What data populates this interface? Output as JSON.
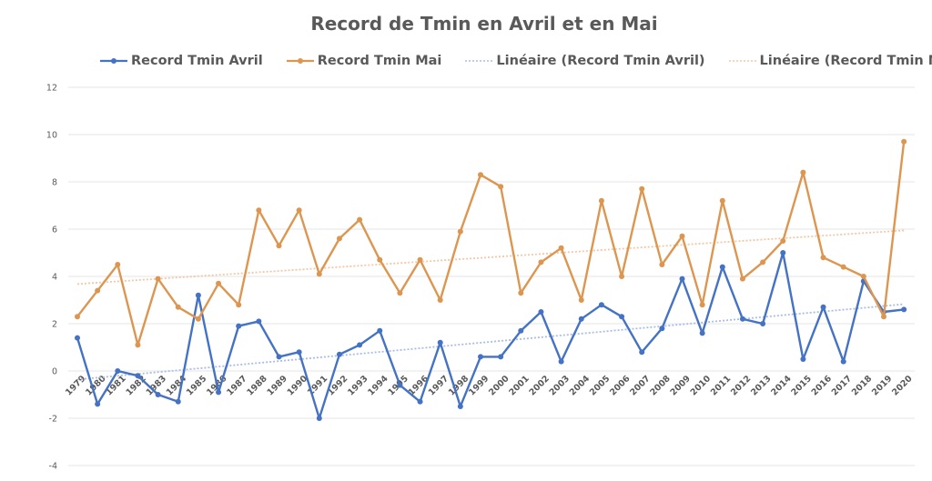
{
  "chart_data": {
    "type": "line",
    "title": "Record de Tmin en Avril et en Mai",
    "xlabel": "",
    "ylabel": "",
    "ylim": [
      -4,
      12
    ],
    "yticks": [
      "-4",
      "-2",
      "0",
      "2",
      "4",
      "6",
      "8",
      "10",
      "12"
    ],
    "grid": true,
    "legend_position": "top",
    "categories": [
      "1979",
      "1980",
      "1981",
      "1982",
      "1983",
      "1984",
      "1985",
      "1986",
      "1987",
      "1988",
      "1989",
      "1990",
      "1991",
      "1992",
      "1993",
      "1994",
      "1995",
      "1996",
      "1997",
      "1998",
      "1999",
      "2000",
      "2001",
      "2002",
      "2003",
      "2004",
      "2005",
      "2006",
      "2007",
      "2008",
      "2009",
      "2010",
      "2011",
      "2012",
      "2013",
      "2014",
      "2015",
      "2016",
      "2017",
      "2018",
      "2019",
      "2020"
    ],
    "series": [
      {
        "name": "Record Tmin Avril",
        "color": "#4472c4",
        "values": [
          1.4,
          -1.4,
          0.0,
          -0.2,
          -1.0,
          -1.3,
          3.2,
          -0.9,
          1.9,
          2.1,
          0.6,
          0.8,
          -2.0,
          0.7,
          1.1,
          1.7,
          -0.6,
          -1.3,
          1.2,
          -1.5,
          0.6,
          0.6,
          1.7,
          2.5,
          0.4,
          2.2,
          2.8,
          2.3,
          0.8,
          1.8,
          3.9,
          1.6,
          4.4,
          2.2,
          2.0,
          5.0,
          0.5,
          2.7,
          0.4,
          3.8,
          2.5,
          2.6
        ]
      },
      {
        "name": "Record Tmin Mai",
        "color": "#dd9650",
        "values": [
          2.3,
          3.4,
          4.5,
          1.1,
          3.9,
          2.7,
          2.2,
          3.7,
          2.8,
          6.8,
          5.3,
          6.8,
          4.1,
          5.6,
          6.4,
          4.7,
          3.3,
          4.7,
          3.0,
          5.9,
          8.3,
          7.8,
          3.3,
          4.6,
          5.2,
          3.0,
          7.2,
          4.0,
          7.7,
          4.5,
          5.7,
          2.8,
          7.2,
          3.9,
          4.6,
          5.5,
          8.4,
          4.8,
          4.4,
          4.0,
          2.3,
          9.7
        ]
      }
    ],
    "trendlines": [
      {
        "name": "Linéaire (Record Tmin Avril)",
        "color": "#a9bde6",
        "of": "Record Tmin Avril"
      },
      {
        "name": "Linéaire (Record Tmin Mai)",
        "color": "#f2c8a6",
        "of": "Record Tmin Mai"
      }
    ]
  }
}
